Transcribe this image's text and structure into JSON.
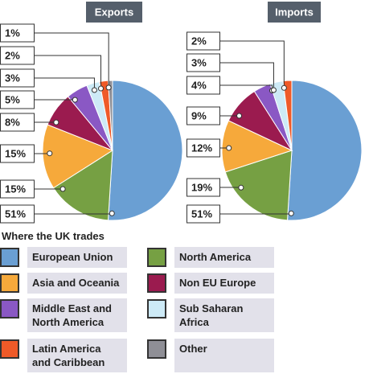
{
  "chart_data": [
    {
      "type": "pie",
      "title": "Exports",
      "categories": [
        "European Union",
        "North America",
        "Asia and Oceania",
        "Non EU Europe",
        "Middle East and North America",
        "Sub Saharan Africa",
        "Latin America and Caribbean",
        "Other"
      ],
      "values": [
        51,
        15,
        15,
        8,
        5,
        3,
        2,
        1
      ],
      "value_labels": [
        "51%",
        "15%",
        "15%",
        "8%",
        "5%",
        "3%",
        "2%",
        "1%"
      ],
      "colors": [
        "#6a9fd3",
        "#76a043",
        "#f6a93b",
        "#9b1b4f",
        "#8a58c4",
        "#cdeaf6",
        "#ef5a28",
        "#8f8f96"
      ]
    },
    {
      "type": "pie",
      "title": "Imports",
      "categories": [
        "European Union",
        "North America",
        "Asia and Oceania",
        "Non EU Europe",
        "Middle East and North America",
        "Sub Saharan Africa",
        "Latin America and Caribbean"
      ],
      "values": [
        51,
        19,
        12,
        9,
        4,
        3,
        2
      ],
      "value_labels": [
        "51%",
        "19%",
        "12%",
        "9%",
        "4%",
        "3%",
        "2%"
      ],
      "colors": [
        "#6a9fd3",
        "#76a043",
        "#f6a93b",
        "#9b1b4f",
        "#8a58c4",
        "#cdeaf6",
        "#ef5a28"
      ]
    }
  ],
  "legend": {
    "title": "Where the UK trades"
  }
}
